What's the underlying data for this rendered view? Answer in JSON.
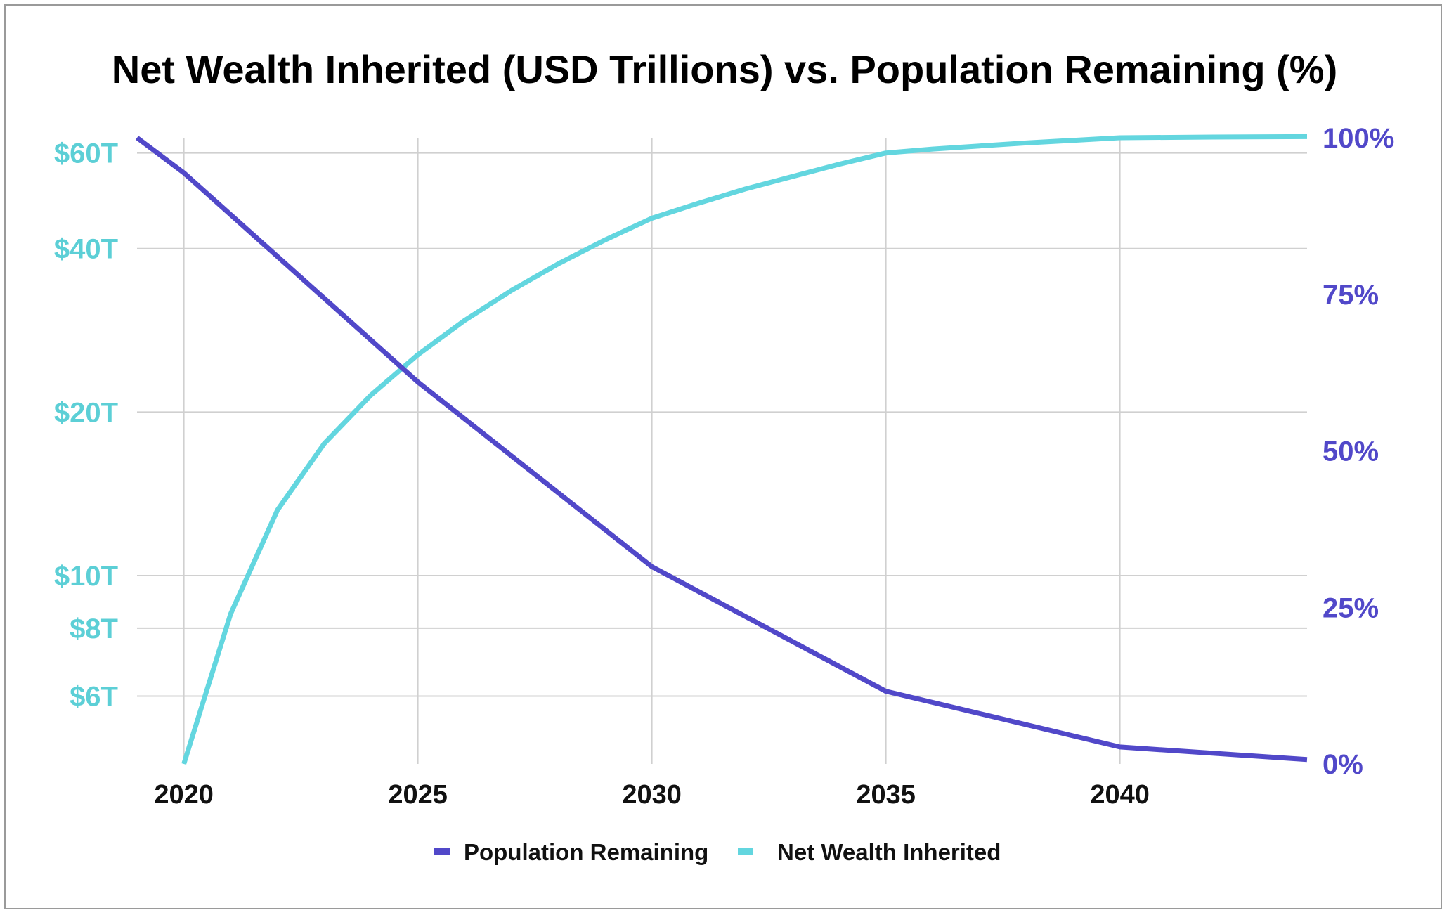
{
  "chart_data": {
    "type": "line",
    "title": "Net Wealth Inherited (USD Trillions) vs. Population Remaining (%)",
    "x_ticks": [
      "2020",
      "2025",
      "2030",
      "2035",
      "2040"
    ],
    "xlim": [
      2019,
      2044
    ],
    "y_left": {
      "scale": "log",
      "range": [
        4.5,
        64
      ],
      "ticks": [
        {
          "value": 6,
          "label": "$6T"
        },
        {
          "value": 8,
          "label": "$8T"
        },
        {
          "value": 10,
          "label": "$10T"
        },
        {
          "value": 20,
          "label": "$20T"
        },
        {
          "value": 40,
          "label": "$40T"
        },
        {
          "value": 60,
          "label": "$60T"
        }
      ],
      "color": "#5ccfd6"
    },
    "y_right": {
      "scale": "linear",
      "range": [
        0,
        100
      ],
      "ticks": [
        {
          "value": 0,
          "label": "0%"
        },
        {
          "value": 25,
          "label": "25%"
        },
        {
          "value": 50,
          "label": "50%"
        },
        {
          "value": 75,
          "label": "75%"
        },
        {
          "value": 100,
          "label": "100%"
        }
      ],
      "color": "#5148c9"
    },
    "grid": true,
    "legend_position": "bottom",
    "series": [
      {
        "name": "Population Remaining",
        "axis": "right",
        "color": "#5148c9",
        "points": [
          [
            2019,
            100
          ],
          [
            2020,
            94.4
          ],
          [
            2025,
            61
          ],
          [
            2030,
            31.5
          ],
          [
            2035,
            11.6
          ],
          [
            2040,
            2.7
          ],
          [
            2044,
            0.7
          ]
        ]
      },
      {
        "name": "Net Wealth Inherited",
        "axis": "left",
        "color": "#63d6df",
        "points": [
          [
            2020,
            4.5
          ],
          [
            2021,
            8.5
          ],
          [
            2022,
            13.2
          ],
          [
            2023,
            17.5
          ],
          [
            2024,
            21.5
          ],
          [
            2025,
            25.5
          ],
          [
            2026,
            29.5
          ],
          [
            2027,
            33.5
          ],
          [
            2028,
            37.5
          ],
          [
            2029,
            41.5
          ],
          [
            2030,
            45.5
          ],
          [
            2031,
            48.5
          ],
          [
            2032,
            51.5
          ],
          [
            2033,
            54.3
          ],
          [
            2034,
            57.2
          ],
          [
            2035,
            60
          ],
          [
            2036,
            61
          ],
          [
            2037,
            61.8
          ],
          [
            2038,
            62.6
          ],
          [
            2039,
            63.3
          ],
          [
            2040,
            64
          ],
          [
            2042,
            64.2
          ],
          [
            2044,
            64.3
          ]
        ]
      }
    ]
  }
}
